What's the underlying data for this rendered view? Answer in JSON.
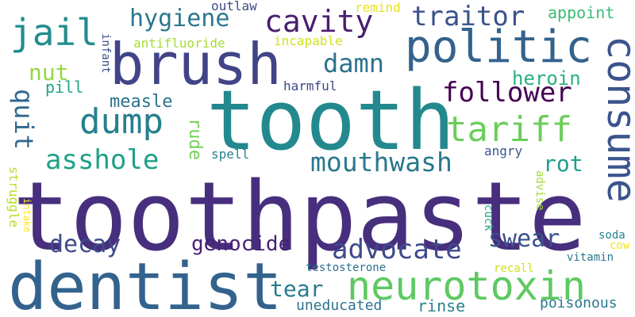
{
  "words": [
    {
      "text": "toothpaste",
      "color": "#472f7d"
    },
    {
      "text": "tooth",
      "color": "#23898e"
    },
    {
      "text": "dentist",
      "color": "#33638d"
    },
    {
      "text": "brush",
      "color": "#414487"
    },
    {
      "text": "politic",
      "color": "#33638d"
    },
    {
      "text": "consume",
      "color": "#3a548c"
    },
    {
      "text": "neurotoxin",
      "color": "#5ec962"
    },
    {
      "text": "cavity",
      "color": "#481f70"
    },
    {
      "text": "jail",
      "color": "#228c8d"
    },
    {
      "text": "tariff",
      "color": "#6ccd5a"
    },
    {
      "text": "dump",
      "color": "#277f8e"
    },
    {
      "text": "traitor",
      "color": "#3b528b"
    },
    {
      "text": "hygiene",
      "color": "#2a788e"
    },
    {
      "text": "damn",
      "color": "#2c728e"
    },
    {
      "text": "follower",
      "color": "#440154"
    },
    {
      "text": "mouthwash",
      "color": "#2a788e"
    },
    {
      "text": "asshole",
      "color": "#1fa088"
    },
    {
      "text": "advocate",
      "color": "#3e4a89"
    },
    {
      "text": "quit",
      "color": "#31688e"
    },
    {
      "text": "swear",
      "color": "#3b528b"
    },
    {
      "text": "decay",
      "color": "#3e4a89"
    },
    {
      "text": "genocide",
      "color": "#482173"
    },
    {
      "text": "rot",
      "color": "#1f9e89"
    },
    {
      "text": "tear",
      "color": "#287c8e"
    },
    {
      "text": "nut",
      "color": "#95d840"
    },
    {
      "text": "heroin",
      "color": "#29af7f"
    },
    {
      "text": "measle",
      "color": "#2c728e"
    },
    {
      "text": "rude",
      "color": "#73d056"
    },
    {
      "text": "appoint",
      "color": "#3cbc75"
    },
    {
      "text": "pill",
      "color": "#20a386"
    },
    {
      "text": "angry",
      "color": "#39568c"
    },
    {
      "text": "rinse",
      "color": "#26828e"
    },
    {
      "text": "poisonous",
      "color": "#2a788e"
    },
    {
      "text": "uneducated",
      "color": "#2d718e"
    },
    {
      "text": "outlaw",
      "color": "#3e4a89"
    },
    {
      "text": "harmful",
      "color": "#3e4989"
    },
    {
      "text": "antifluoride",
      "color": "#a8db34"
    },
    {
      "text": "incapable",
      "color": "#d2e21b"
    },
    {
      "text": "remind",
      "color": "#e7e419"
    },
    {
      "text": "infant",
      "color": "#3b528b"
    },
    {
      "text": "spell",
      "color": "#26828e"
    },
    {
      "text": "struggle",
      "color": "#b5de2b"
    },
    {
      "text": "intake",
      "color": "#fde725"
    },
    {
      "text": "cuck",
      "color": "#22a884"
    },
    {
      "text": "advise",
      "color": "#a2da37"
    },
    {
      "text": "testosterone",
      "color": "#2e6f8e"
    },
    {
      "text": "recall",
      "color": "#cde11d"
    },
    {
      "text": "vitamin",
      "color": "#2a788e"
    },
    {
      "text": "soda",
      "color": "#26828e"
    },
    {
      "text": "cow",
      "color": "#f1e51d"
    }
  ]
}
